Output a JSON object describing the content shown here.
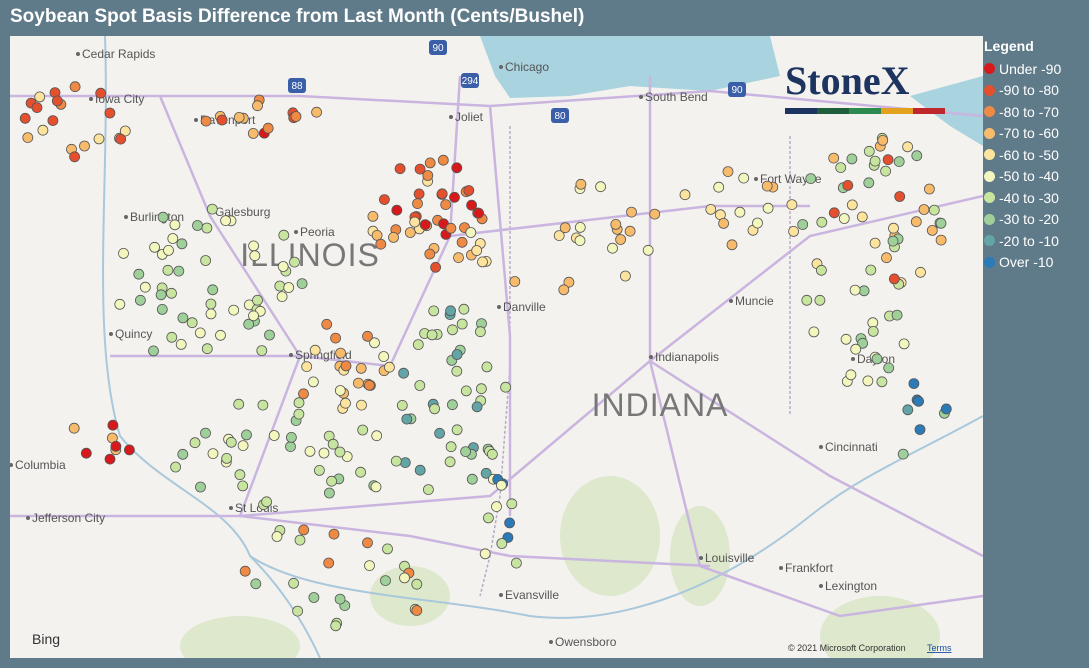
{
  "header": {
    "title": "Soybean Spot Basis Difference from Last Month (Cents/Bushel)"
  },
  "legend": {
    "title": "Legend",
    "items": [
      {
        "label": "Under -90",
        "color": "#d7191c"
      },
      {
        "label": "-90 to -80",
        "color": "#e4502e"
      },
      {
        "label": "-80 to -70",
        "color": "#ef8a45"
      },
      {
        "label": "-70 to -60",
        "color": "#f8bb6c"
      },
      {
        "label": "-60 to -50",
        "color": "#fde49e"
      },
      {
        "label": "-50 to -40",
        "color": "#f3f6bd"
      },
      {
        "label": "-40 to -30",
        "color": "#c8e5a0"
      },
      {
        "label": "-30 to -20",
        "color": "#9fd09a"
      },
      {
        "label": "-20 to -10",
        "color": "#63a5a6"
      },
      {
        "label": "Over -10",
        "color": "#2b7bb9"
      }
    ]
  },
  "map": {
    "states": [
      "ILLINOIS",
      "INDIANA"
    ],
    "cities": [
      "Cedar Rapids",
      "Iowa City",
      "Davenport",
      "Galesburg",
      "Peoria",
      "Burlington",
      "Quincy",
      "Springfield",
      "Columbia",
      "Jefferson City",
      "St Louis",
      "Joliet",
      "Chicago",
      "South Bend",
      "Fort Wayne",
      "Muncie",
      "Danville",
      "Indianapolis",
      "Dayton",
      "Cincinnati",
      "Louisville",
      "Frankfort",
      "Lexington",
      "Evansville",
      "Owensboro"
    ],
    "shields": [
      "90",
      "294",
      "88",
      "80",
      "90"
    ],
    "logo": "StoneX",
    "attribution": "© 2021 Microsoft Corporation",
    "terms": "Terms",
    "provider": "Bing"
  }
}
